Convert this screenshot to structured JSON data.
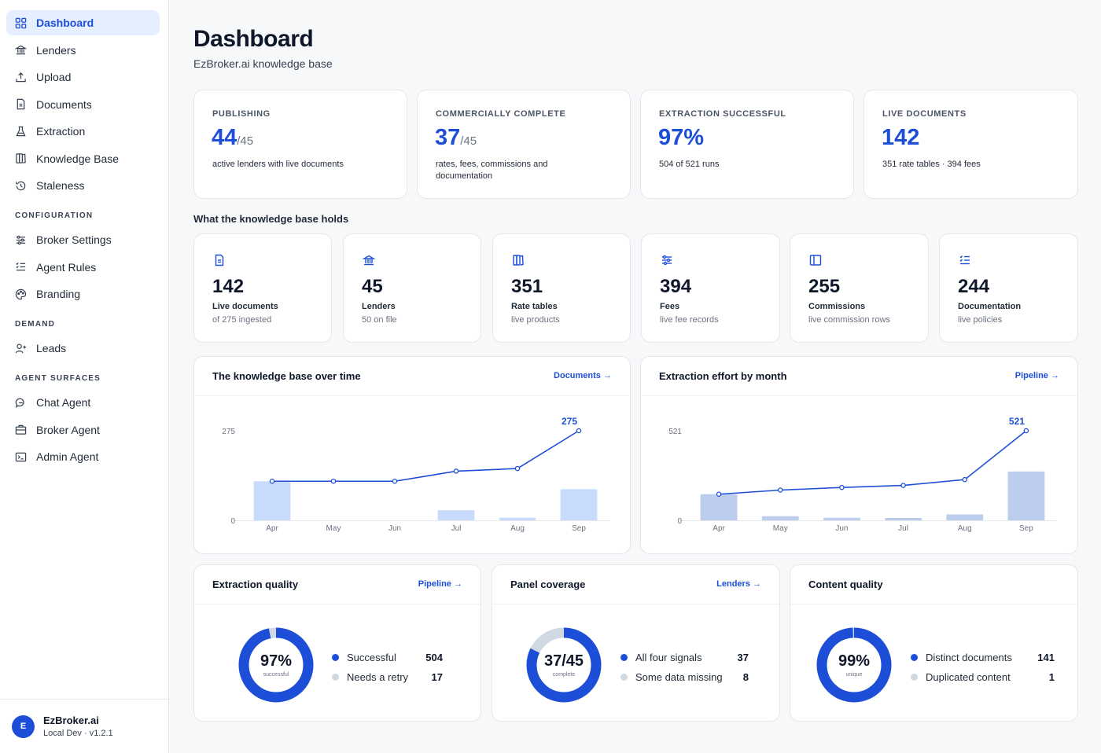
{
  "sidebar": {
    "items": [
      {
        "label": "Dashboard",
        "icon": "grid-icon"
      },
      {
        "label": "Lenders",
        "icon": "bank-icon"
      },
      {
        "label": "Upload",
        "icon": "upload-icon"
      },
      {
        "label": "Documents",
        "icon": "document-icon"
      },
      {
        "label": "Extraction",
        "icon": "flask-icon"
      },
      {
        "label": "Knowledge Base",
        "icon": "book-icon"
      },
      {
        "label": "Staleness",
        "icon": "history-icon"
      }
    ],
    "sections": [
      {
        "title": "CONFIGURATION",
        "items": [
          {
            "label": "Broker Settings",
            "icon": "sliders-icon"
          },
          {
            "label": "Agent Rules",
            "icon": "list-checks-icon"
          },
          {
            "label": "Branding",
            "icon": "palette-icon"
          }
        ]
      },
      {
        "title": "DEMAND",
        "items": [
          {
            "label": "Leads",
            "icon": "user-plus-icon"
          }
        ]
      },
      {
        "title": "AGENT SURFACES",
        "items": [
          {
            "label": "Chat Agent",
            "icon": "chat-icon"
          },
          {
            "label": "Broker Agent",
            "icon": "briefcase-icon"
          },
          {
            "label": "Admin Agent",
            "icon": "terminal-icon"
          }
        ]
      }
    ],
    "footer": {
      "initial": "E",
      "name": "EzBroker.ai",
      "env": "Local Dev · v1.2.1"
    }
  },
  "header": {
    "title": "Dashboard",
    "subtitle": "EzBroker.ai knowledge base"
  },
  "kpis": [
    {
      "label": "PUBLISHING",
      "value": "44",
      "of": "/45",
      "desc": "active lenders with live documents"
    },
    {
      "label": "COMMERCIALLY COMPLETE",
      "value": "37",
      "of": "/45",
      "desc": "rates, fees, commissions and documentation"
    },
    {
      "label": "EXTRACTION SUCCESSFUL",
      "value": "97%",
      "of": "",
      "desc": "504 of 521 runs"
    },
    {
      "label": "LIVE DOCUMENTS",
      "value": "142",
      "of": "",
      "desc": "351 rate tables · 394 fees"
    }
  ],
  "holds": {
    "title": "What the knowledge base holds",
    "items": [
      {
        "icon": "document-icon",
        "value": "142",
        "label": "Live documents",
        "sub": "of 275 ingested"
      },
      {
        "icon": "bank-icon",
        "value": "45",
        "label": "Lenders",
        "sub": "50 on file"
      },
      {
        "icon": "book-icon",
        "value": "351",
        "label": "Rate tables",
        "sub": "live products"
      },
      {
        "icon": "sliders-icon",
        "value": "394",
        "label": "Fees",
        "sub": "live fee records"
      },
      {
        "icon": "panel-icon",
        "value": "255",
        "label": "Commissions",
        "sub": "live commission rows"
      },
      {
        "icon": "list-checks-icon",
        "value": "244",
        "label": "Documentation",
        "sub": "live policies"
      }
    ]
  },
  "panels": {
    "kb_over_time": {
      "title": "The knowledge base over time",
      "link": "Documents →"
    },
    "extraction_effort": {
      "title": "Extraction effort by month",
      "link": "Pipeline →"
    },
    "extraction_quality": {
      "title": "Extraction quality",
      "link": "Pipeline →",
      "center": "97%",
      "center_sub": "successful",
      "legend": [
        {
          "label": "Successful",
          "value": "504"
        },
        {
          "label": "Needs a retry",
          "value": "17"
        }
      ]
    },
    "panel_coverage": {
      "title": "Panel coverage",
      "link": "Lenders →",
      "center": "37/45",
      "center_sub": "complete",
      "legend": [
        {
          "label": "All four signals",
          "value": "37"
        },
        {
          "label": "Some data missing",
          "value": "8"
        }
      ]
    },
    "content_quality": {
      "title": "Content quality",
      "link": "",
      "center": "99%",
      "center_sub": "unique",
      "legend": [
        {
          "label": "Distinct documents",
          "value": "141"
        },
        {
          "label": "Duplicated content",
          "value": "1"
        }
      ]
    }
  },
  "colors": {
    "accent": "#1d4ed8",
    "accent_light": "#c7d8fb",
    "muted": "#cfd8e3"
  },
  "chart_data": [
    {
      "type": "bar",
      "categories": [
        "Apr",
        "May",
        "Jun",
        "Jul",
        "Aug",
        "Sep"
      ],
      "series": [
        {
          "type": "bar",
          "values": [
            120,
            0,
            0,
            31,
            8,
            96
          ]
        },
        {
          "type": "line",
          "values": [
            120,
            120,
            120,
            151,
            159,
            275
          ]
        }
      ],
      "title": "The knowledge base over time",
      "ylim": [
        0,
        275
      ],
      "yticks": [
        "0",
        "275"
      ],
      "end_label": "275"
    },
    {
      "type": "bar",
      "categories": [
        "Apr",
        "May",
        "Jun",
        "Jul",
        "Aug",
        "Sep"
      ],
      "series": [
        {
          "type": "bar",
          "values": [
            152,
            24,
            15,
            12,
            34,
            284
          ]
        },
        {
          "type": "line",
          "values": [
            152,
            176,
            191,
            203,
            237,
            521
          ]
        }
      ],
      "title": "Extraction effort by month",
      "ylim": [
        0,
        521
      ],
      "yticks": [
        "0",
        "521"
      ],
      "end_label": "521"
    },
    {
      "type": "pie",
      "title": "Extraction quality",
      "categories": [
        "Successful",
        "Needs a retry"
      ],
      "values": [
        504,
        17
      ]
    },
    {
      "type": "pie",
      "title": "Panel coverage",
      "categories": [
        "All four signals",
        "Some data missing"
      ],
      "values": [
        37,
        8
      ]
    },
    {
      "type": "pie",
      "title": "Content quality",
      "categories": [
        "Distinct documents",
        "Duplicated content"
      ],
      "values": [
        141,
        1
      ]
    }
  ]
}
